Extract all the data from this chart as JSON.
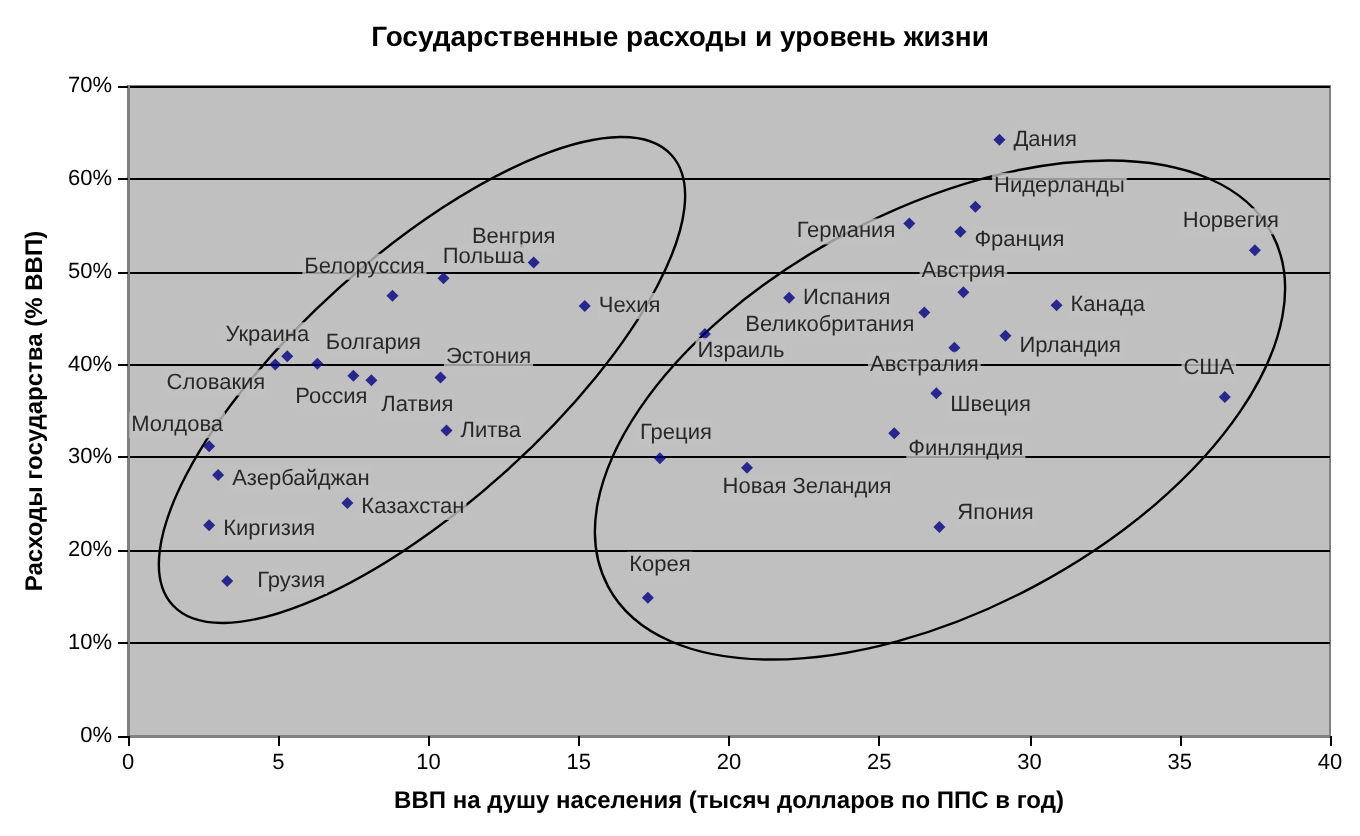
{
  "chart_data": {
    "type": "scatter",
    "title": "Государственные расходы и уровень жизни",
    "xlabel": "ВВП на душу населения (тысяч долларов по ППС в год)",
    "ylabel": "Расходы государства (% ВВП)",
    "xlim": [
      0,
      40
    ],
    "xticks": [
      0,
      5,
      10,
      15,
      20,
      25,
      30,
      35,
      40
    ],
    "ylim": [
      0,
      70
    ],
    "yticks": [
      {
        "value": 0,
        "label": "0%"
      },
      {
        "value": 10,
        "label": "10%"
      },
      {
        "value": 20,
        "label": "20%"
      },
      {
        "value": 30,
        "label": "30%"
      },
      {
        "value": 40,
        "label": "40%"
      },
      {
        "value": 50,
        "label": "50%"
      },
      {
        "value": 60,
        "label": "60%"
      },
      {
        "value": 70,
        "label": "70%"
      }
    ],
    "grid": "y",
    "marker": "diamond",
    "series": [
      {
        "color": "#00007f",
        "x": [
          13.5,
          10.5,
          8.8,
          15.2,
          5.3,
          4.9,
          6.3,
          7.5,
          8.1,
          10.4,
          10.6,
          2.7,
          3.0,
          7.3,
          2.7,
          3.3,
          29.0,
          28.2,
          26.0,
          27.7,
          37.5,
          22.0,
          27.8,
          30.9,
          26.5,
          19.2,
          29.2,
          27.5,
          36.5,
          26.9,
          25.5,
          17.7,
          20.6,
          27.0,
          17.3
        ],
        "values": [
          51.0,
          49.3,
          47.4,
          46.3,
          40.9,
          40.0,
          40.1,
          38.8,
          38.3,
          38.6,
          32.9,
          31.2,
          28.1,
          25.1,
          22.7,
          16.7,
          64.2,
          57.0,
          55.2,
          54.3,
          52.3,
          47.2,
          47.8,
          46.4,
          45.6,
          43.3,
          43.1,
          41.8,
          36.5,
          36.9,
          32.6,
          29.9,
          28.9,
          22.5,
          14.9
        ],
        "value_labels": [
          "Венгрия",
          "Польша",
          "Белоруссия",
          "Чехия",
          "Украина",
          "Словакия",
          "Болгария",
          "Россия",
          "Латвия",
          "Эстония",
          "Литва",
          "Молдова",
          "Азербайджан",
          "Казахстан",
          "Киргизия",
          "Грузия",
          "Дания",
          "Нидерланды",
          "Германия",
          "Франция",
          "Норвегия",
          "Испания",
          "Австрия",
          "Канада",
          "Великобритания",
          "Израиль",
          "Ирландия",
          "Австралия",
          "США",
          "Швеция",
          "Финляндия",
          "Греция",
          "Новая Зеландия",
          "Япония",
          "Корея"
        ]
      }
    ]
  }
}
